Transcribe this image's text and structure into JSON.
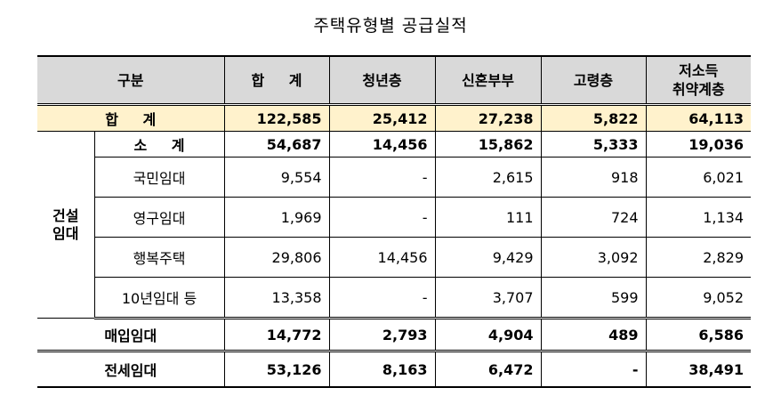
{
  "title": "주택유형별 공급실적",
  "headers": {
    "category": "구분",
    "total": "합  계",
    "youth": "청년층",
    "newlywed": "신혼부부",
    "elderly": "고령층",
    "vulnerable_line1": "저소득",
    "vulnerable_line2": "취약계층"
  },
  "total_row": {
    "label": "합  계",
    "values": [
      "122,585",
      "25,412",
      "27,238",
      "5,822",
      "64,113"
    ]
  },
  "construction": {
    "group_line1": "건설",
    "group_line2": "임대",
    "rows": [
      {
        "label": "소  계",
        "values": [
          "54,687",
          "14,456",
          "15,862",
          "5,333",
          "19,036"
        ]
      },
      {
        "label": "국민임대",
        "values": [
          "9,554",
          "-",
          "2,615",
          "918",
          "6,021"
        ]
      },
      {
        "label": "영구임대",
        "values": [
          "1,969",
          "-",
          "111",
          "724",
          "1,134"
        ]
      },
      {
        "label": "행복주택",
        "values": [
          "29,806",
          "14,456",
          "9,429",
          "3,092",
          "2,829"
        ]
      },
      {
        "label": "10년임대 등",
        "values": [
          "13,358",
          "-",
          "3,707",
          "599",
          "9,052"
        ]
      }
    ]
  },
  "purchase_row": {
    "label": "매입임대",
    "values": [
      "14,772",
      "2,793",
      "4,904",
      "489",
      "6,586"
    ]
  },
  "jeonse_row": {
    "label": "전세임대",
    "values": [
      "53,126",
      "8,163",
      "6,472",
      "-",
      "38,491"
    ]
  }
}
